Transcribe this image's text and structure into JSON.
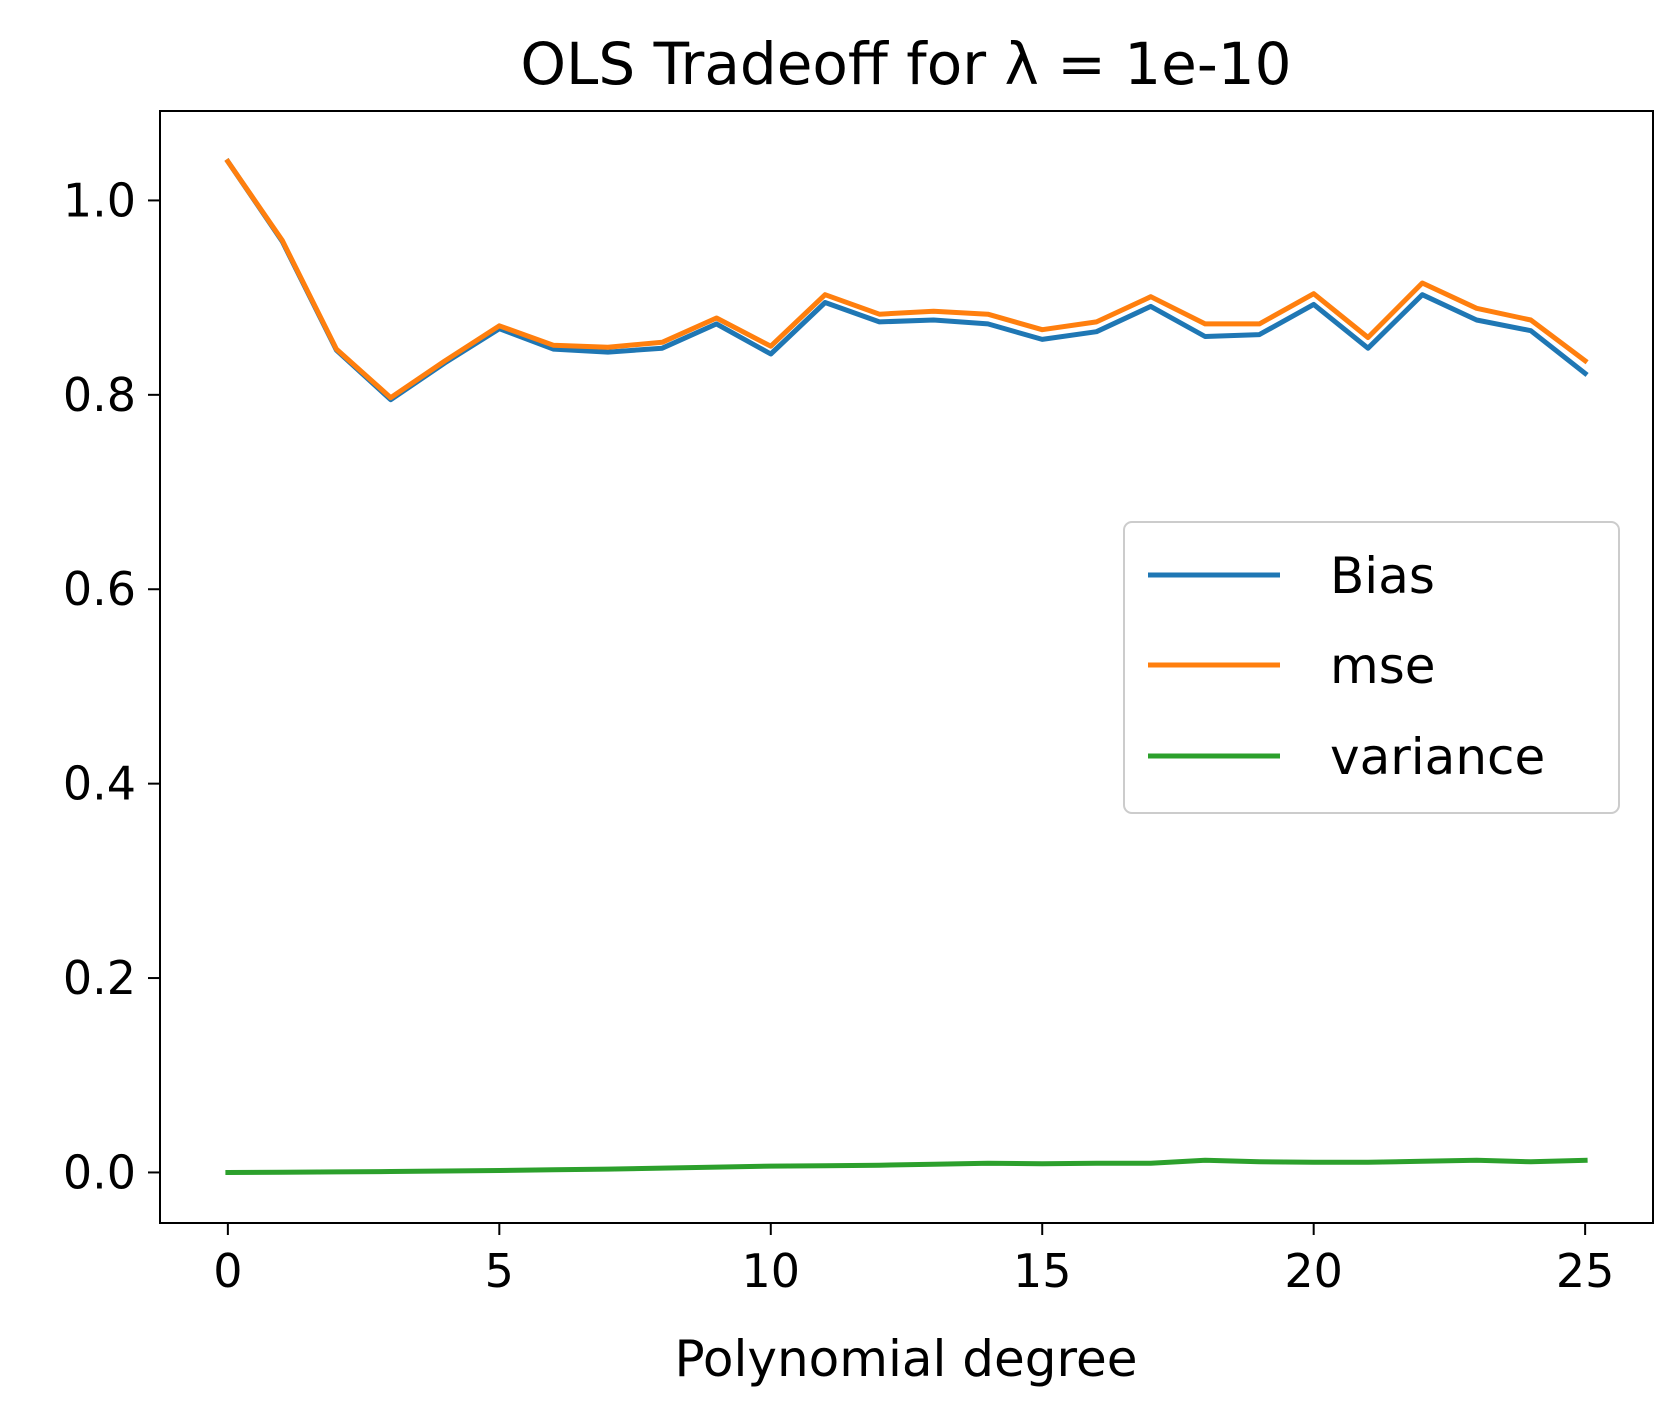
{
  "chart_data": {
    "type": "line",
    "title": "OLS Tradeoff for λ =  1e-10",
    "xlabel": "Polynomial degree",
    "ylabel": "",
    "xlim": [
      -1.25,
      26.25
    ],
    "ylim": [
      -0.052,
      1.092
    ],
    "xticks": [
      0,
      5,
      10,
      15,
      20,
      25
    ],
    "xtick_labels": [
      "0",
      "5",
      "10",
      "15",
      "20",
      "25"
    ],
    "yticks": [
      0.0,
      0.2,
      0.4,
      0.6,
      0.8,
      1.0
    ],
    "ytick_labels": [
      "0.0",
      "0.2",
      "0.4",
      "0.6",
      "0.8",
      "1.0"
    ],
    "grid": false,
    "legend_position": "center-right",
    "x": [
      0,
      1,
      2,
      3,
      4,
      5,
      6,
      7,
      8,
      9,
      10,
      11,
      12,
      13,
      14,
      15,
      16,
      17,
      18,
      19,
      20,
      21,
      22,
      23,
      24,
      25
    ],
    "series": [
      {
        "name": "Bias",
        "color": "#1f77b4",
        "values": [
          1.04,
          0.958,
          0.846,
          0.795,
          0.833,
          0.868,
          0.847,
          0.844,
          0.848,
          0.873,
          0.842,
          0.895,
          0.875,
          0.877,
          0.873,
          0.857,
          0.865,
          0.891,
          0.86,
          0.862,
          0.893,
          0.848,
          0.903,
          0.877,
          0.866,
          0.822
        ]
      },
      {
        "name": "mse",
        "color": "#ff7f0e",
        "values": [
          1.04,
          0.959,
          0.847,
          0.797,
          0.835,
          0.871,
          0.851,
          0.849,
          0.854,
          0.879,
          0.85,
          0.903,
          0.883,
          0.886,
          0.883,
          0.867,
          0.875,
          0.901,
          0.873,
          0.873,
          0.904,
          0.859,
          0.915,
          0.889,
          0.877,
          0.835
        ]
      },
      {
        "name": "variance",
        "color": "#2ca02c",
        "values": [
          0.0,
          0.0003,
          0.0006,
          0.001,
          0.0015,
          0.002,
          0.0028,
          0.0035,
          0.0045,
          0.0055,
          0.0065,
          0.007,
          0.0075,
          0.0085,
          0.0095,
          0.009,
          0.0095,
          0.0095,
          0.0125,
          0.011,
          0.0105,
          0.0105,
          0.0115,
          0.0125,
          0.011,
          0.0125
        ]
      }
    ]
  }
}
